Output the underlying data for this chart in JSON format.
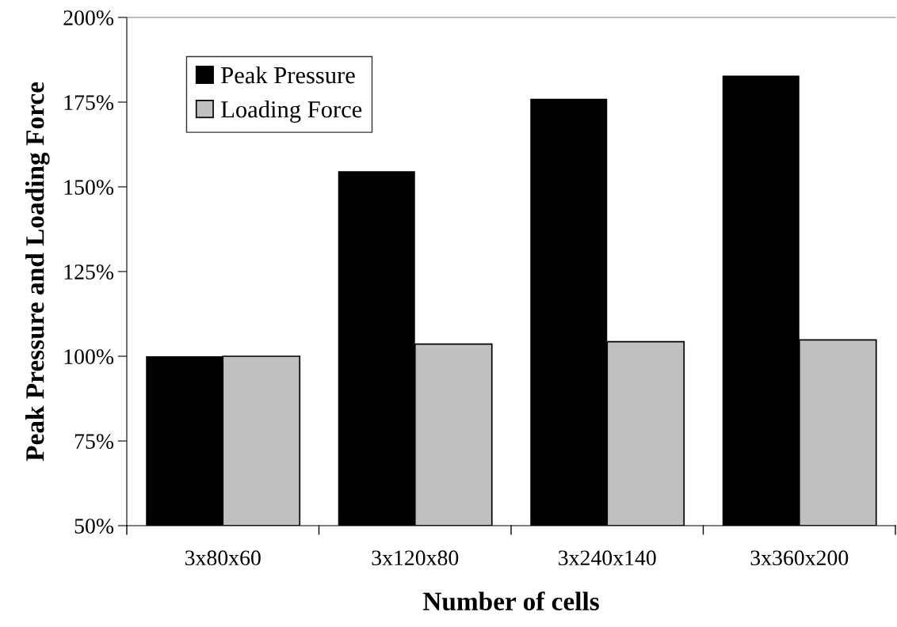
{
  "chart_data": {
    "type": "bar",
    "xlabel": "Number of cells",
    "ylabel": "Peak Pressure and Loading Force",
    "categories": [
      "3x80x60",
      "3x120x80",
      "3x240x140",
      "3x360x200"
    ],
    "series": [
      {
        "name": "Peak Pressure",
        "color": "#000000",
        "values": [
          100,
          154.6,
          176.0,
          182.8
        ]
      },
      {
        "name": "Loading Force",
        "color": "#c0c0c0",
        "values": [
          100,
          103.6,
          104.3,
          104.8
        ]
      }
    ],
    "ylim": [
      50,
      200
    ],
    "yticks": [
      {
        "value": 50,
        "label": "50%"
      },
      {
        "value": 75,
        "label": "75%"
      },
      {
        "value": 100,
        "label": "100%"
      },
      {
        "value": 125,
        "label": "125%"
      },
      {
        "value": 150,
        "label": "150%"
      },
      {
        "value": 175,
        "label": "175%"
      },
      {
        "value": 200,
        "label": "200%"
      }
    ],
    "grid": false,
    "legend": "top left"
  }
}
